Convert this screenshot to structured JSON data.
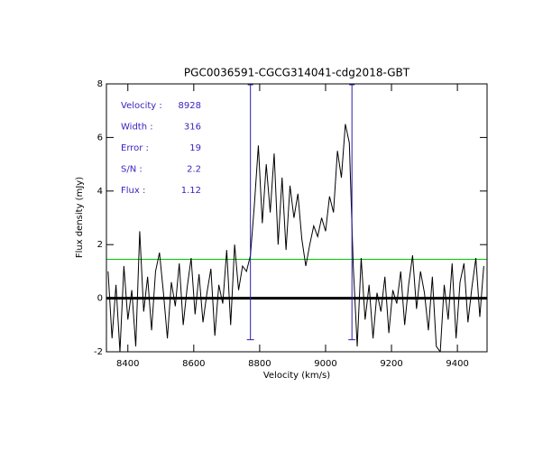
{
  "chart_data": {
    "type": "line",
    "title": "PGC0036591-CGCG314041-cdg2018-GBT",
    "xlabel": "Velocity (km/s)",
    "ylabel": "Flux density (mJy)",
    "xlim": [
      8335,
      9490
    ],
    "ylim": [
      -2,
      8
    ],
    "xticks": [
      8400,
      8600,
      8800,
      9000,
      9200,
      9400
    ],
    "yticks": [
      -2,
      0,
      2,
      4,
      6,
      8
    ],
    "color": "#000000",
    "x": [
      8340,
      8352,
      8364,
      8376,
      8388,
      8400,
      8412,
      8424,
      8436,
      8448,
      8460,
      8472,
      8484,
      8496,
      8508,
      8520,
      8532,
      8544,
      8556,
      8568,
      8580,
      8592,
      8604,
      8616,
      8628,
      8640,
      8652,
      8664,
      8676,
      8688,
      8700,
      8712,
      8724,
      8736,
      8748,
      8760,
      8772,
      8784,
      8796,
      8808,
      8820,
      8832,
      8844,
      8856,
      8868,
      8880,
      8892,
      8904,
      8916,
      8928,
      8940,
      8952,
      8964,
      8976,
      8988,
      9000,
      9012,
      9024,
      9036,
      9048,
      9060,
      9072,
      9084,
      9096,
      9108,
      9120,
      9132,
      9144,
      9156,
      9168,
      9180,
      9192,
      9204,
      9216,
      9228,
      9240,
      9252,
      9264,
      9276,
      9288,
      9300,
      9312,
      9324,
      9336,
      9348,
      9360,
      9372,
      9384,
      9396,
      9408,
      9420,
      9432,
      9444,
      9456,
      9468,
      9480
    ],
    "values": [
      1.0,
      -1.5,
      0.5,
      -2,
      1.2,
      -0.8,
      0.3,
      -1.8,
      2.5,
      -0.5,
      0.8,
      -1.2,
      1.0,
      1.7,
      0.2,
      -1.5,
      0.6,
      -0.3,
      1.3,
      -1.0,
      0.4,
      1.5,
      -0.6,
      0.9,
      -0.9,
      0.2,
      1.1,
      -1.4,
      0.5,
      -0.2,
      1.8,
      -1.0,
      2.0,
      0.3,
      1.2,
      1.0,
      1.6,
      3.5,
      5.7,
      2.8,
      5.0,
      3.2,
      5.4,
      2.0,
      4.5,
      1.8,
      4.2,
      3.0,
      3.9,
      2.2,
      1.2,
      2.0,
      2.7,
      2.3,
      3.0,
      2.5,
      3.8,
      3.2,
      5.5,
      4.5,
      6.5,
      5.8,
      1.2,
      -1.8,
      1.5,
      -0.8,
      0.5,
      -1.5,
      0.2,
      -0.5,
      0.8,
      -1.3,
      0.3,
      -0.2,
      1.0,
      -1.0,
      0.5,
      1.6,
      -0.4,
      1.0,
      0.2,
      -1.2,
      0.8,
      -1.8,
      -2.0,
      0.5,
      -0.8,
      1.3,
      -1.5,
      0.6,
      1.3,
      -0.9,
      0.4,
      1.5,
      -0.7,
      1.2
    ],
    "baseline": 0,
    "rms_level": 1.45,
    "rms_color": "#00cc00",
    "markers": [
      8772,
      9080
    ],
    "marker_low": -1.55,
    "marker_color": "#2a1fb0",
    "annotations": [
      {
        "label": "Velocity :",
        "value": "8928"
      },
      {
        "label": "Width :",
        "value": "316"
      },
      {
        "label": "Error :",
        "value": "19"
      },
      {
        "label": "S/N :",
        "value": "2.2"
      },
      {
        "label": "Flux :",
        "value": "1.12"
      }
    ]
  }
}
